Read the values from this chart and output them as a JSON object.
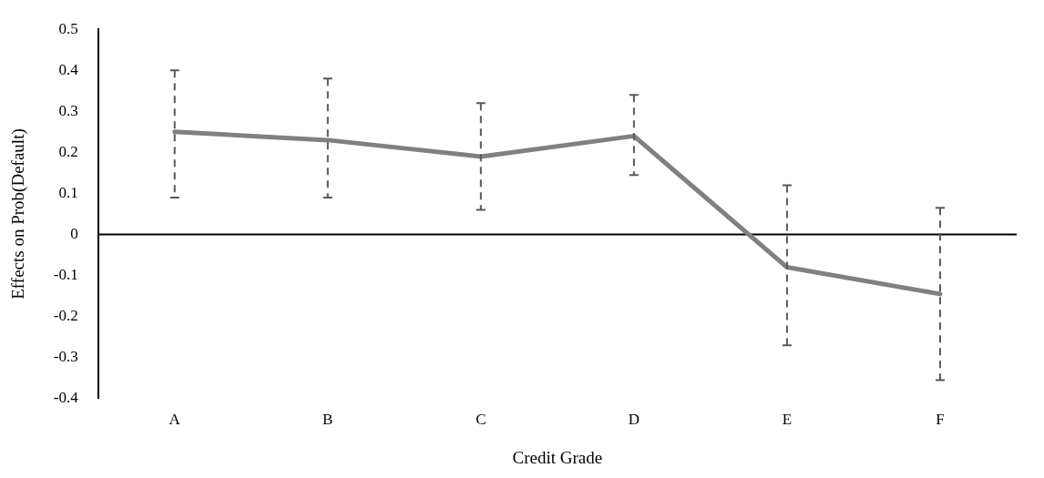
{
  "chart_data": {
    "type": "line",
    "xlabel": "Credit Grade",
    "ylabel": "Effects on Prob(Default)",
    "categories": [
      "A",
      "B",
      "C",
      "D",
      "E",
      "F"
    ],
    "series": [
      {
        "color": "#808080",
        "values": [
          0.25,
          0.23,
          0.19,
          0.24,
          -0.08,
          -0.145
        ],
        "errors": [
          [
            0.09,
            0.4
          ],
          [
            0.09,
            0.38
          ],
          [
            0.06,
            0.32
          ],
          [
            0.145,
            0.34
          ],
          [
            -0.27,
            0.12
          ],
          [
            -0.355,
            0.065
          ]
        ]
      }
    ],
    "ylim": [
      -0.4,
      0.5
    ],
    "yticks": [
      -0.4,
      -0.3,
      -0.2,
      -0.1,
      0,
      0.1,
      0.2,
      0.3,
      0.4,
      0.5
    ],
    "ref_lines": [
      {
        "axis": "y",
        "value": 0,
        "color": "#000000"
      }
    ],
    "legend": false,
    "marker": "none",
    "line_style": "solid"
  }
}
